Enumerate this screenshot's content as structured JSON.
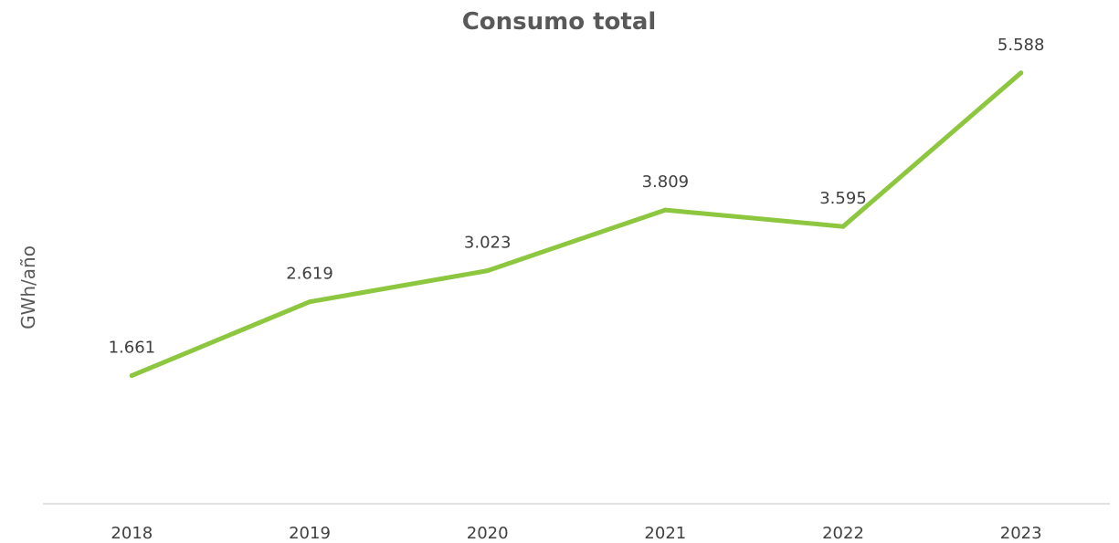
{
  "chart_data": {
    "type": "line",
    "title": "Consumo total",
    "xlabel": "",
    "ylabel": "GWh/año",
    "categories": [
      "2018",
      "2019",
      "2020",
      "2021",
      "2022",
      "2023"
    ],
    "series": [
      {
        "values": [
          1661,
          2619,
          3023,
          3809,
          3595,
          5588
        ],
        "labels": [
          "1.661",
          "2.619",
          "3.023",
          "3.809",
          "3.595",
          "5.588"
        ]
      }
    ],
    "ylim": [
      0,
      6000
    ],
    "grid": false,
    "legend": "none",
    "colors": {
      "line": "#8dc63f",
      "axis": "#d9d9d9"
    }
  }
}
